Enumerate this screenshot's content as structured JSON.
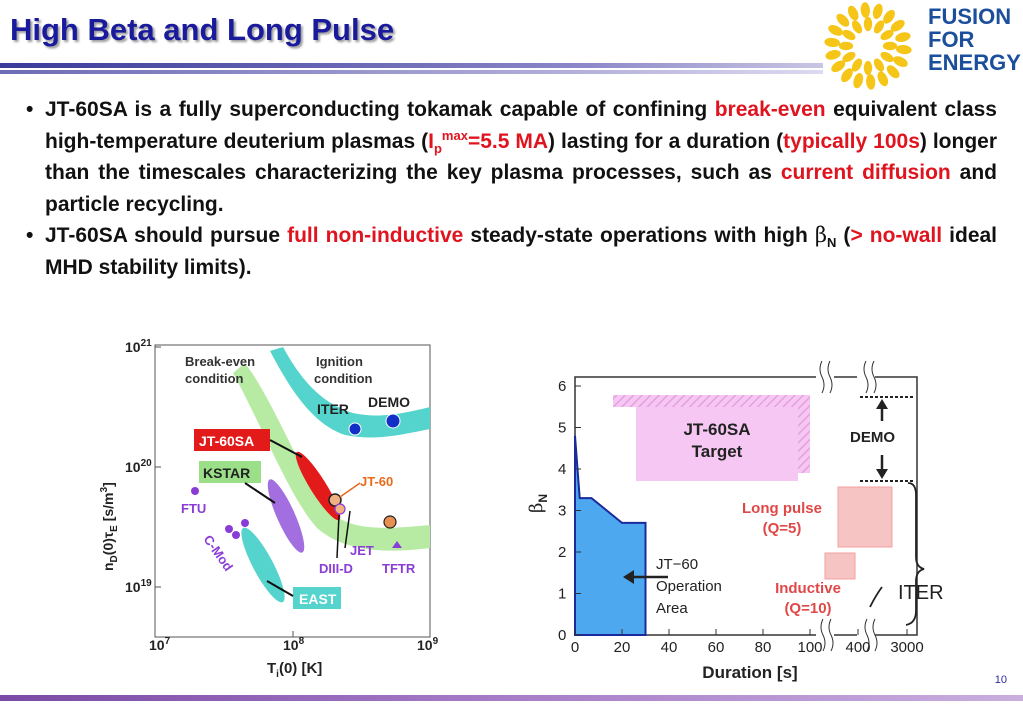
{
  "slide": {
    "title": "High Beta and Long Pulse",
    "page_number": "10",
    "logo": {
      "text_line1": "FUSION",
      "text_line2": "FOR",
      "text_line3": "ENERGY",
      "color": "#1b4f9c",
      "sun_color": "#f5c518"
    }
  },
  "bullets": [
    {
      "p1": "JT-60SA is a fully superconducting tokamak capable of confining ",
      "r1": "break-even",
      "p2": " equivalent class high-temperature deuterium plasmas (",
      "r2a": "I",
      "r2sub": "p",
      "r2sup": "max",
      "r2b": "=5.5 MA",
      "p3": ") lasting for a duration (",
      "r3": "typically 100s",
      "p4": ") longer than the timescales characterizing the key plasma processes, such as ",
      "r4": "current diffusion",
      "p5": " and particle recycling."
    },
    {
      "p1": "JT-60SA should pursue ",
      "r1": "full non-inductive",
      "p2": " steady-state operations with high ",
      "beta": "β",
      "beta_sub": "N",
      "p3": " (",
      "r2": "> no-wall",
      "p4": " ideal MHD stability limits)."
    }
  ],
  "left_chart": {
    "ylabel": "n",
    "ylabel_sub1": "D",
    "ylabel_mid": "(0)τ",
    "ylabel_sub2": "E",
    "ylabel_end": " [s/m",
    "ylabel_sup": "3",
    "ylabel_close": "]",
    "xlabel": "T",
    "xlabel_sub": "i",
    "xlabel_end": "(0) [K]",
    "x_ticks": [
      "10",
      "10",
      "10"
    ],
    "x_tick_sups": [
      "7",
      "8",
      "9"
    ],
    "y_ticks": [
      "10",
      "10",
      "10"
    ],
    "y_tick_sups": [
      "21",
      "20",
      "19"
    ],
    "region_breakeven_1": "Break-even",
    "region_breakeven_2": "condition",
    "region_ignition_1": "Ignition",
    "region_ignition_2": "condition",
    "labels": {
      "iter": "ITER",
      "demo": "DEMO",
      "jt60sa": "JT-60SA",
      "kstar": "KSTAR",
      "ftu": "FTU",
      "cmod": "C-Mod",
      "jt60": "JT-60",
      "jet": "JET",
      "diiid": "DIII-D",
      "tftr": "TFTR",
      "east": "EAST"
    }
  },
  "right_chart": {
    "chart_data": {
      "type": "area",
      "xlabel": "Duration [s]",
      "ylabel": "β",
      "ylabel_sub": "N",
      "x_ticks": [
        "0",
        "20",
        "40",
        "60",
        "80",
        "100",
        "400",
        "3000"
      ],
      "y_ticks": [
        "0",
        "1",
        "2",
        "3",
        "4",
        "5",
        "6"
      ],
      "ylim": [
        0,
        6.2
      ],
      "series": [
        {
          "name": "JT−60 Operation Area",
          "x": [
            0,
            0,
            2,
            7,
            20,
            30,
            30
          ],
          "y": [
            0,
            4.8,
            3.3,
            3.3,
            2.7,
            2.7,
            0
          ]
        }
      ],
      "annotations": {
        "target_1": "JT-60SA",
        "target_2": "Target",
        "demo": "DEMO",
        "longpulse_1": "Long pulse",
        "longpulse_2": "(Q=5)",
        "inductive_1": "Inductive",
        "inductive_2": "(Q=10)",
        "iter": "ITER",
        "jt60_1": "JT−60",
        "jt60_2": "Operation",
        "jt60_3": "Area"
      }
    }
  }
}
